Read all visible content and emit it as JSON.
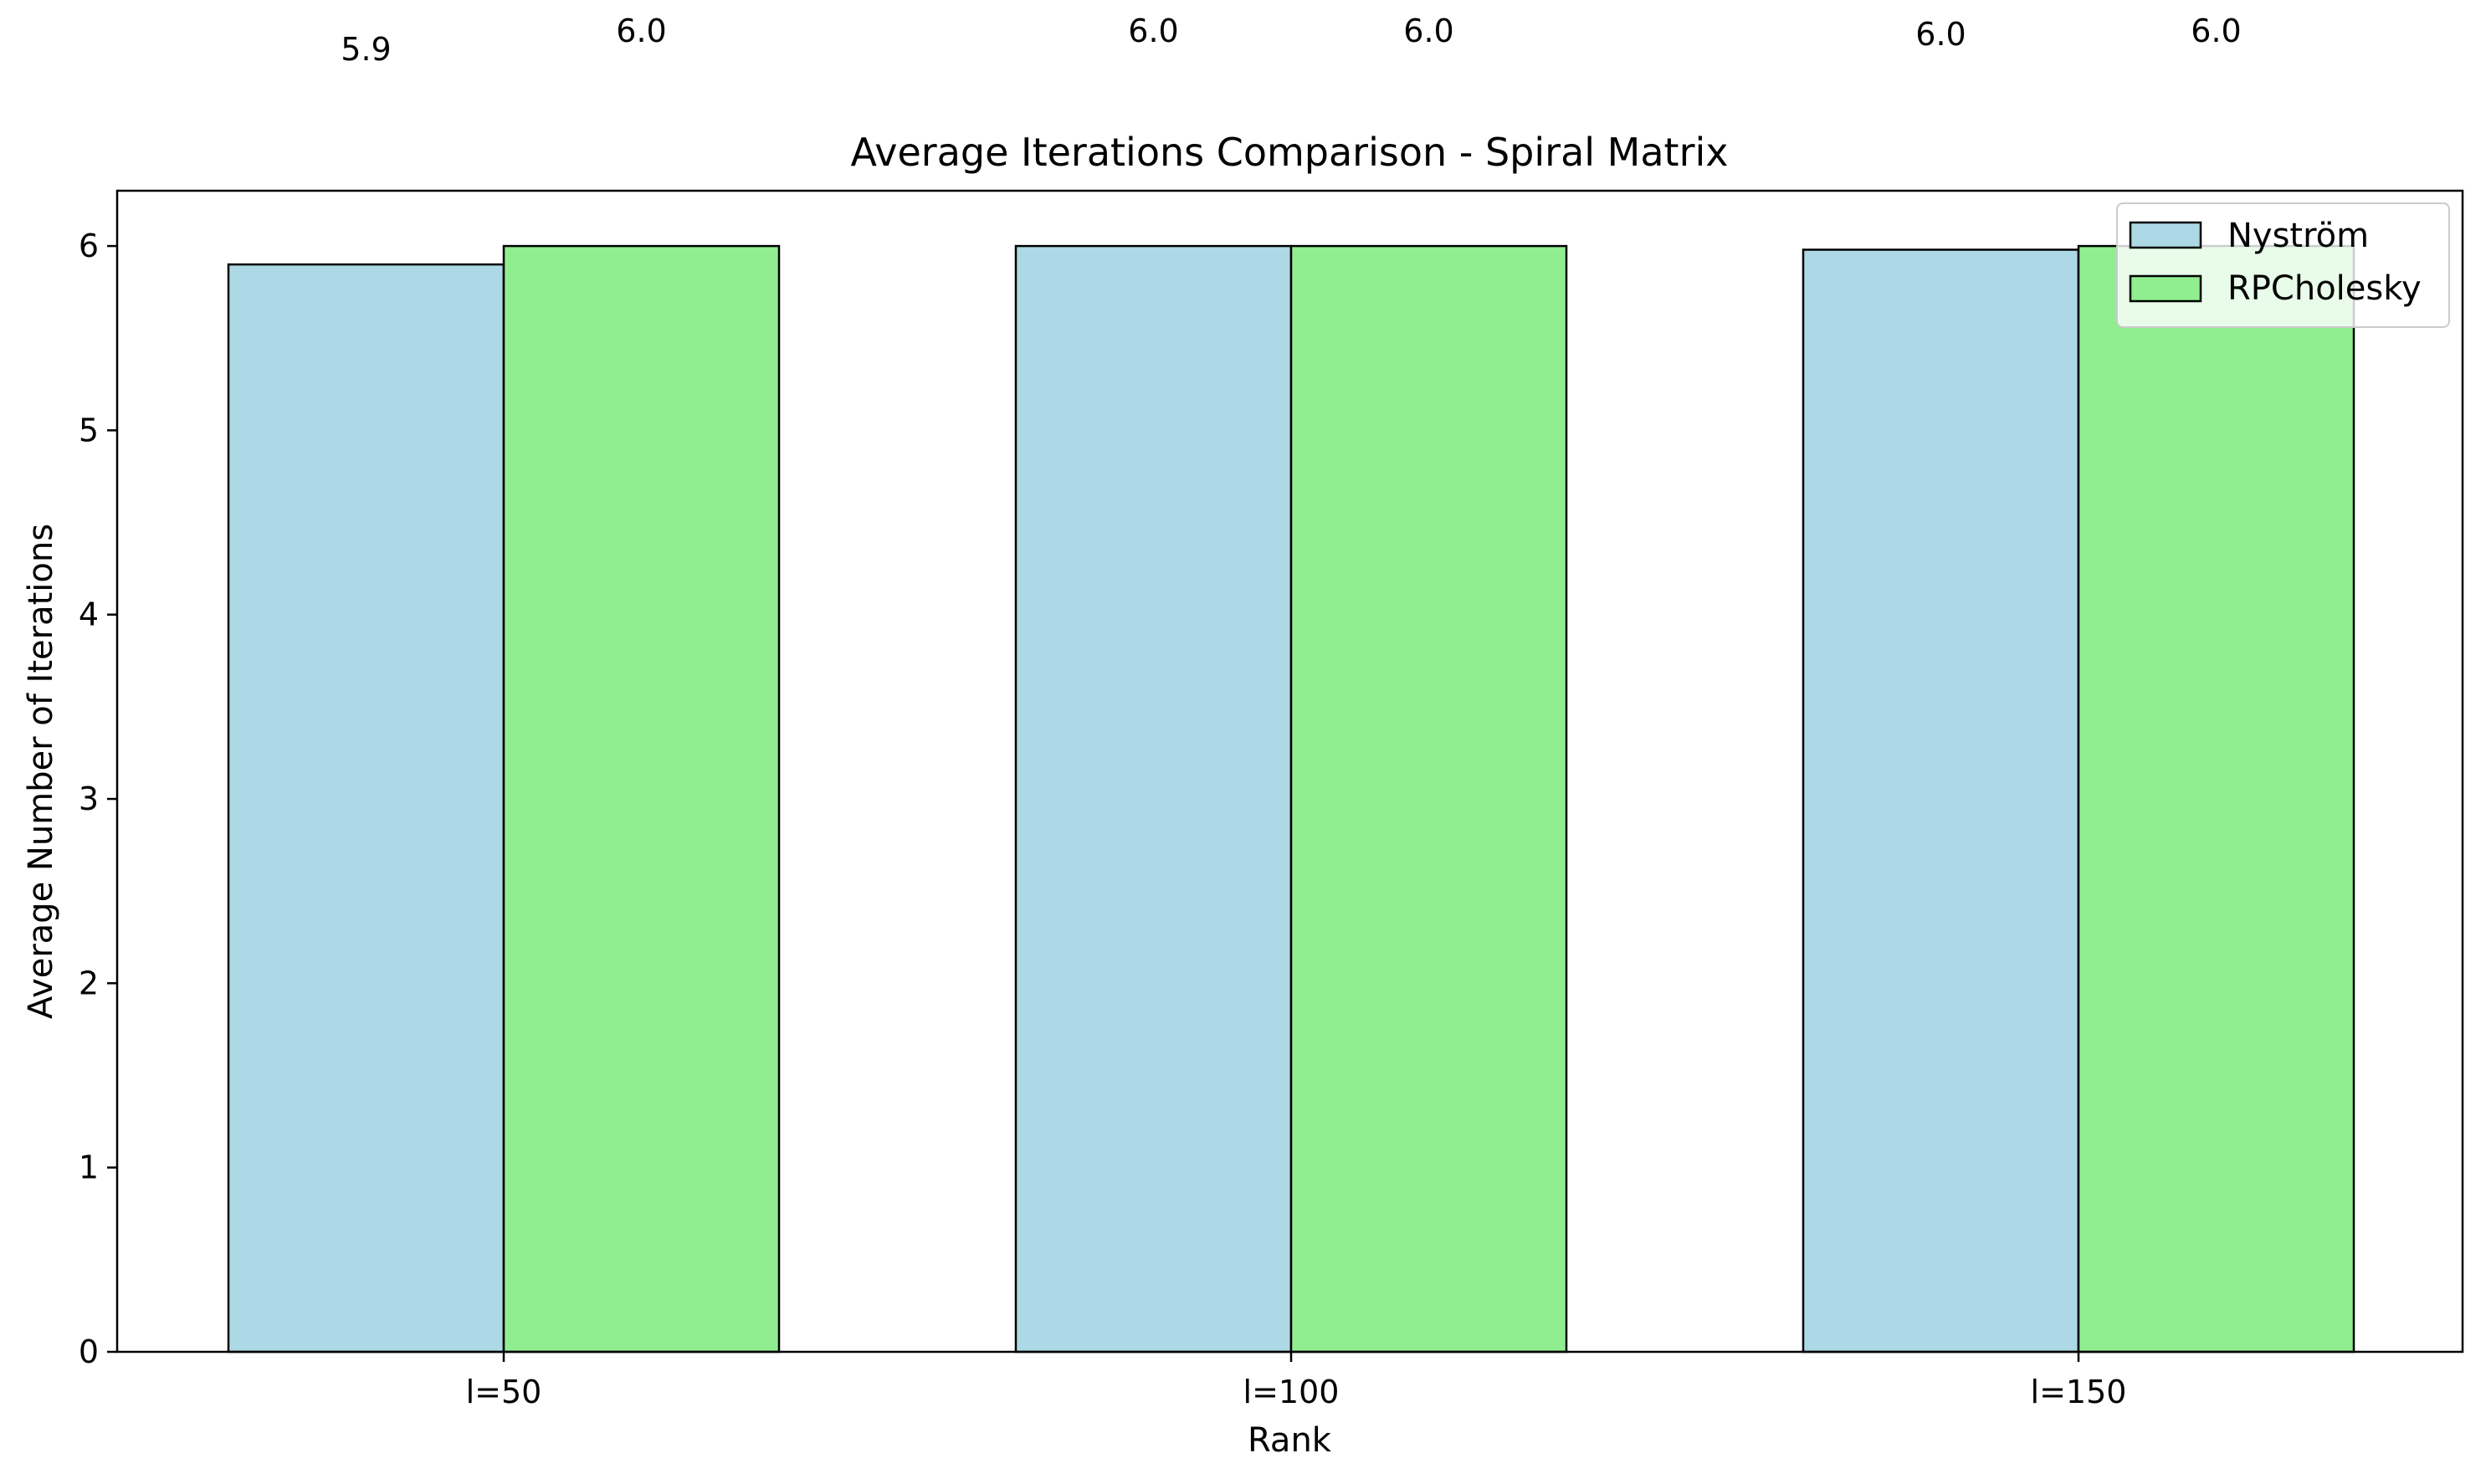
{
  "chart_data": {
    "type": "bar",
    "title": "Average Iterations Comparison - Spiral Matrix",
    "xlabel": "Rank",
    "ylabel": "Average Number of Iterations",
    "categories": [
      "l=50",
      "l=100",
      "l=150"
    ],
    "series": [
      {
        "name": "Nyström",
        "values": [
          5.9,
          6.0,
          5.98
        ],
        "labels": [
          "5.9",
          "6.0",
          "6.0"
        ],
        "color": "#add8e6"
      },
      {
        "name": "RPCholesky",
        "values": [
          6.0,
          6.0,
          6.0
        ],
        "labels": [
          "6.0",
          "6.0",
          "6.0"
        ],
        "color": "#90ee90"
      }
    ],
    "ylim": [
      0,
      6.3
    ],
    "yticks": [
      0,
      1,
      2,
      3,
      4,
      5,
      6
    ],
    "legend_position": "upper right",
    "grid": false,
    "edge_color": "#000000"
  }
}
